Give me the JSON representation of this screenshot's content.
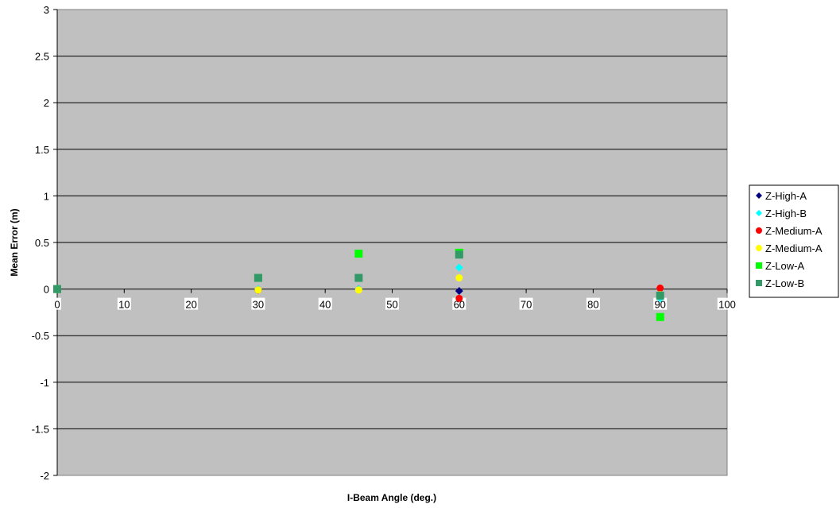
{
  "chart_data": {
    "type": "scatter",
    "title": "",
    "xlabel": "I-Beam Angle (deg.)",
    "ylabel": "Mean Error (m)",
    "xlim": [
      0,
      100
    ],
    "ylim": [
      -2,
      3
    ],
    "x_ticks": [
      "0",
      "10",
      "20",
      "30",
      "40",
      "50",
      "60",
      "70",
      "80",
      "90",
      "100"
    ],
    "y_ticks": [
      "3",
      "2.5",
      "2",
      "1.5",
      "1",
      "0.5",
      "0",
      "-0.5",
      "-1",
      "-1.5",
      "-2"
    ],
    "x_tick_values": [
      0,
      10,
      20,
      30,
      40,
      50,
      60,
      70,
      80,
      90,
      100
    ],
    "y_tick_values": [
      3,
      2.5,
      2,
      1.5,
      1,
      0.5,
      0,
      -0.5,
      -1,
      -1.5,
      -2
    ],
    "grid": "horizontal",
    "plot_background": "#c0c0c0",
    "legend_position": "right",
    "series": [
      {
        "name": "Z-High-A",
        "marker": "diamond",
        "color": "#000080",
        "points": [
          [
            0,
            0
          ],
          [
            30,
            -0.01
          ],
          [
            45,
            0.0
          ],
          [
            60,
            -0.02
          ],
          [
            90,
            -0.08
          ]
        ]
      },
      {
        "name": "Z-High-B",
        "marker": "diamond",
        "color": "#00ffff",
        "points": [
          [
            0,
            0
          ],
          [
            30,
            0.0
          ],
          [
            45,
            0.0
          ],
          [
            60,
            0.23
          ],
          [
            90,
            -0.1
          ]
        ]
      },
      {
        "name": "Z-Medium-A",
        "marker": "circle",
        "color": "#ff0000",
        "points": [
          [
            0,
            0
          ],
          [
            30,
            -0.01
          ],
          [
            45,
            0.12
          ],
          [
            60,
            -0.1
          ],
          [
            90,
            0.01
          ]
        ]
      },
      {
        "name": "Z-Medium-A",
        "marker": "circle",
        "color": "#ffff00",
        "points": [
          [
            0,
            0
          ],
          [
            30,
            -0.01
          ],
          [
            45,
            -0.01
          ],
          [
            60,
            0.12
          ],
          [
            90,
            -0.06
          ]
        ]
      },
      {
        "name": "Z-Low-A",
        "marker": "square",
        "color": "#00ff00",
        "points": [
          [
            0,
            0
          ],
          [
            30,
            0.12
          ],
          [
            45,
            0.38
          ],
          [
            60,
            0.39
          ],
          [
            90,
            -0.3
          ]
        ]
      },
      {
        "name": "Z-Low-B",
        "marker": "square",
        "color": "#339966",
        "points": [
          [
            0,
            0
          ],
          [
            30,
            0.12
          ],
          [
            45,
            0.12
          ],
          [
            60,
            0.37
          ],
          [
            90,
            -0.07
          ]
        ]
      }
    ]
  }
}
